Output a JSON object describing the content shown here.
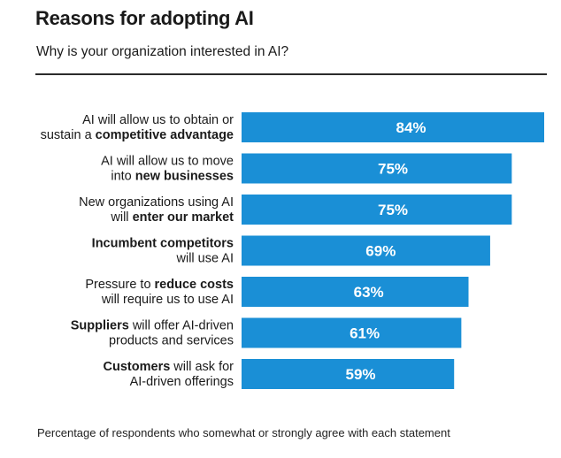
{
  "header": {
    "title": "Reasons for adopting AI",
    "subtitle": "Why is your organization interested in AI?"
  },
  "footer": {
    "note": "Percentage of respondents who somewhat or strongly agree with each statement"
  },
  "colors": {
    "bar": "#1a8fd6",
    "value_text": "#ffffff"
  },
  "chart_data": {
    "type": "bar",
    "orientation": "horizontal",
    "title": "Reasons for adopting AI",
    "subtitle": "Why is your organization interested in AI?",
    "xlabel": "",
    "ylabel": "",
    "unit": "%",
    "xlim": [
      0,
      84
    ],
    "categories": [
      "AI will allow us to obtain or sustain a competitive advantage",
      "AI will allow us to move into new businesses",
      "New organizations using AI will enter our market",
      "Incumbent competitors will use AI",
      "Pressure to reduce costs will require us to use AI",
      "Suppliers will offer AI-driven products and services",
      "Customers will ask for AI-driven offerings"
    ],
    "values": [
      84,
      75,
      75,
      69,
      63,
      61,
      59
    ],
    "value_labels": [
      "84%",
      "75%",
      "75%",
      "69%",
      "63%",
      "61%",
      "59%"
    ],
    "label_lines": [
      [
        [
          {
            "t": "AI will allow us to obtain or",
            "b": false
          }
        ],
        [
          {
            "t": "sustain a ",
            "b": false
          },
          {
            "t": "competitive advantage",
            "b": true
          }
        ]
      ],
      [
        [
          {
            "t": "AI will allow us to move",
            "b": false
          }
        ],
        [
          {
            "t": "into ",
            "b": false
          },
          {
            "t": "new businesses",
            "b": true
          }
        ]
      ],
      [
        [
          {
            "t": "New organizations using AI",
            "b": false
          }
        ],
        [
          {
            "t": "will ",
            "b": false
          },
          {
            "t": "enter our market",
            "b": true
          }
        ]
      ],
      [
        [
          {
            "t": "Incumbent competitors",
            "b": true
          }
        ],
        [
          {
            "t": "will use AI",
            "b": false
          }
        ]
      ],
      [
        [
          {
            "t": "Pressure to ",
            "b": false
          },
          {
            "t": "reduce costs",
            "b": true
          }
        ],
        [
          {
            "t": "will require us to use AI",
            "b": false
          }
        ]
      ],
      [
        [
          {
            "t": "Suppliers",
            "b": true
          },
          {
            "t": " will offer AI-driven",
            "b": false
          }
        ],
        [
          {
            "t": "products and services",
            "b": false
          }
        ]
      ],
      [
        [
          {
            "t": "Customers",
            "b": true
          },
          {
            "t": " will ask for",
            "b": false
          }
        ],
        [
          {
            "t": "AI-driven offerings",
            "b": false
          }
        ]
      ]
    ]
  }
}
